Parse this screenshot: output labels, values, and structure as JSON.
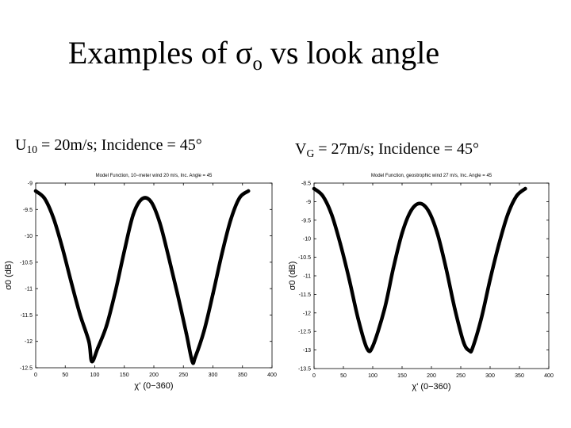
{
  "slide": {
    "title": {
      "pre": "Examples of ",
      "sigma": "σ",
      "sub": "o",
      "post": " vs look angle"
    },
    "caption_left": {
      "base": "U",
      "sub": "10",
      "rest": " = 20m/s; Incidence = 45°"
    },
    "caption_right": {
      "base": "V",
      "sub": "G",
      "rest": " = 27m/s; Incidence = 45°"
    }
  },
  "colors": {
    "line": "#000000",
    "axis": "#000000",
    "background": "#ffffff"
  },
  "chart_data": [
    {
      "type": "line",
      "title": "Model Function, 10−meter wind 20 m/s, Inc. Angle = 45",
      "xlabel": "χ' (0−360)",
      "ylabel": "σ0 (dB)",
      "xlim": [
        0,
        400
      ],
      "ylim": [
        -12.5,
        -9
      ],
      "xticks": [
        0,
        50,
        100,
        150,
        200,
        250,
        300,
        350,
        400
      ],
      "yticks": [
        -9,
        -9.5,
        -10,
        -10.5,
        -11,
        -11.5,
        -12,
        -12.5
      ],
      "xtick_labels": [
        "0",
        "50",
        "100",
        "150",
        "200",
        "250",
        "300",
        "350",
        "400"
      ],
      "ytick_labels": [
        "-9",
        "-9.5",
        "-10",
        "-10.5",
        "-11",
        "-11.5",
        "-12",
        "-12.5"
      ],
      "grid": false,
      "series": [
        {
          "x": [
            0,
            15,
            30,
            45,
            60,
            75,
            90,
            95,
            105,
            120,
            135,
            150,
            165,
            180,
            195,
            210,
            225,
            240,
            255,
            265,
            270,
            285,
            300,
            315,
            330,
            345,
            360
          ],
          "y": [
            -9.15,
            -9.29,
            -9.66,
            -10.22,
            -10.87,
            -11.49,
            -12.0,
            -12.38,
            -12.13,
            -11.7,
            -11.05,
            -10.29,
            -9.6,
            -9.3,
            -9.35,
            -9.75,
            -10.4,
            -11.1,
            -11.85,
            -12.38,
            -12.3,
            -11.8,
            -11.1,
            -10.35,
            -9.7,
            -9.28,
            -9.15
          ]
        }
      ]
    },
    {
      "type": "line",
      "title": "Model Function, geostrophic wind 27 m/s, Inc. Angle = 45",
      "xlabel": "χ' (0−360)",
      "ylabel": "σ0 (dB)",
      "xlim": [
        0,
        400
      ],
      "ylim": [
        -13.5,
        -8.5
      ],
      "xticks": [
        0,
        50,
        100,
        150,
        200,
        250,
        300,
        350,
        400
      ],
      "yticks": [
        -8.5,
        -9,
        -9.5,
        -10,
        -10.5,
        -11,
        -11.5,
        -12,
        -12.5,
        -13,
        -13.5
      ],
      "xtick_labels": [
        "0",
        "50",
        "100",
        "150",
        "200",
        "250",
        "300",
        "350",
        "400"
      ],
      "ytick_labels": [
        "-8.5",
        "-9",
        "-9.5",
        "-10",
        "-10.5",
        "-11",
        "-11.5",
        "-12",
        "-12.5",
        "-13",
        "-13.5"
      ],
      "grid": false,
      "series": [
        {
          "x": [
            0,
            15,
            30,
            45,
            60,
            75,
            90,
            100,
            120,
            135,
            150,
            165,
            180,
            195,
            210,
            225,
            240,
            255,
            265,
            270,
            285,
            300,
            315,
            330,
            345,
            360
          ],
          "y": [
            -8.65,
            -8.85,
            -9.35,
            -10.15,
            -11.1,
            -12.15,
            -12.95,
            -12.9,
            -11.9,
            -10.8,
            -9.85,
            -9.25,
            -9.05,
            -9.25,
            -9.85,
            -10.8,
            -11.9,
            -12.8,
            -13.02,
            -12.95,
            -12.15,
            -11.1,
            -10.15,
            -9.35,
            -8.85,
            -8.65
          ]
        }
      ]
    }
  ]
}
